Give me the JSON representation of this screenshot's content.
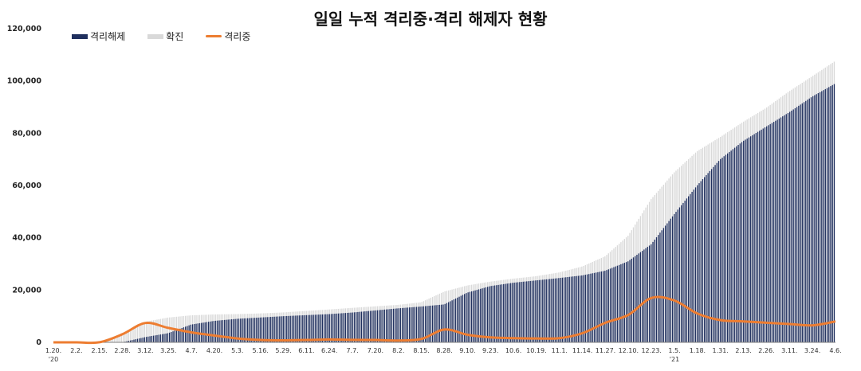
{
  "chart_data": {
    "type": "bar+line",
    "title": "일일 누적 격리중·격리 해제자 현황",
    "ylim": [
      0,
      120000
    ],
    "yticks": [
      0,
      20000,
      40000,
      60000,
      80000,
      100000,
      120000
    ],
    "ytick_labels": [
      "0",
      "20,000",
      "40,000",
      "60,000",
      "80,000",
      "100,000",
      "120,000"
    ],
    "xtick_labels": [
      "1.20.",
      "2.2.",
      "2.15.",
      "2.28.",
      "3.12.",
      "3.25.",
      "4.7.",
      "4.20.",
      "5.3.",
      "5.16.",
      "5.29.",
      "6.11.",
      "6.24.",
      "7.7.",
      "7.20.",
      "8.2.",
      "8.15.",
      "8.28.",
      "9.10.",
      "9.23.",
      "10.6.",
      "10.19.",
      "11.1.",
      "11.14.",
      "11.27.",
      "12.10.",
      "12.23.",
      "1.5.",
      "1.18.",
      "1.31.",
      "2.13.",
      "2.26.",
      "3.11.",
      "3.24.",
      "4.6."
    ],
    "year_labels": [
      {
        "index": 0,
        "label": "'20"
      },
      {
        "index": 27,
        "label": "'21"
      }
    ],
    "legend_position": "top-left",
    "series": [
      {
        "name": "격리해제",
        "kind": "bar",
        "color": "#1f2f5e",
        "values": [
          0,
          0,
          0,
          0,
          2000,
          3500,
          6800,
          8200,
          9000,
          9500,
          10000,
          10400,
          10800,
          11400,
          12200,
          13000,
          13700,
          14500,
          19000,
          21500,
          22800,
          23700,
          24600,
          25600,
          27400,
          31000,
          37500,
          49000,
          60000,
          70000,
          77000,
          82500,
          88000,
          94000,
          99000
        ]
      },
      {
        "name": "확진",
        "kind": "bar",
        "color": "#d9d9d9",
        "values": [
          11,
          15,
          28,
          3150,
          7869,
          9478,
          10331,
          10674,
          10801,
          11065,
          11441,
          12003,
          12563,
          13181,
          13771,
          14336,
          15318,
          19400,
          21743,
          23216,
          24353,
          25298,
          26732,
          28998,
          32887,
          40786,
          54770,
          64979,
          73115,
          78508,
          84325,
          89676,
          96017,
          101757,
          107598
        ]
      },
      {
        "name": "격리중",
        "kind": "line",
        "color": "#ed7d31",
        "values": [
          11,
          15,
          28,
          3100,
          7400,
          5500,
          3800,
          2600,
          1500,
          900,
          750,
          900,
          1100,
          950,
          900,
          700,
          1300,
          4900,
          2900,
          1900,
          1600,
          1500,
          1600,
          3500,
          7500,
          10500,
          17000,
          16000,
          11000,
          8500,
          8000,
          7500,
          7000,
          6500,
          8000
        ]
      }
    ]
  }
}
